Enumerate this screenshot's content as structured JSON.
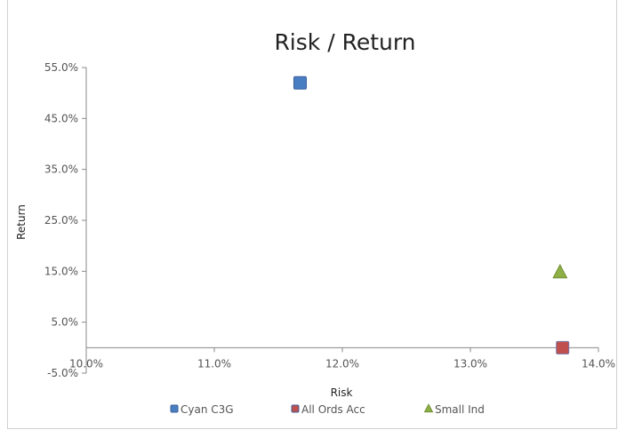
{
  "chart_data": {
    "type": "scatter",
    "title": "Risk / Return",
    "xlabel": "Risk",
    "ylabel": "Return",
    "xlim": [
      0.1,
      0.14
    ],
    "ylim": [
      -0.05,
      0.55
    ],
    "x_ticks": [
      "10.0%",
      "11.0%",
      "12.0%",
      "13.0%",
      "14.0%"
    ],
    "x_tick_values": [
      0.1,
      0.11,
      0.12,
      0.13,
      0.14
    ],
    "y_ticks": [
      "55.0%",
      "45.0%",
      "35.0%",
      "25.0%",
      "15.0%",
      "5.0%",
      "-5.0%"
    ],
    "y_tick_values": [
      0.55,
      0.45,
      0.35,
      0.25,
      0.15,
      0.05,
      -0.05
    ],
    "x_axis_crosses_y_at": 0.0,
    "grid": false,
    "legend_position": "bottom",
    "series": [
      {
        "name": "Cyan C3G",
        "marker": "square",
        "color": "#4a7ec2",
        "points": [
          {
            "x": 0.1167,
            "y": 0.52
          }
        ]
      },
      {
        "name": "All Ords Acc",
        "marker": "square",
        "color": "#c0504d",
        "points": [
          {
            "x": 0.1372,
            "y": 0.0
          }
        ]
      },
      {
        "name": "Small Ind",
        "marker": "triangle",
        "color": "#8fb046",
        "points": [
          {
            "x": 0.137,
            "y": 0.148
          }
        ]
      }
    ]
  }
}
